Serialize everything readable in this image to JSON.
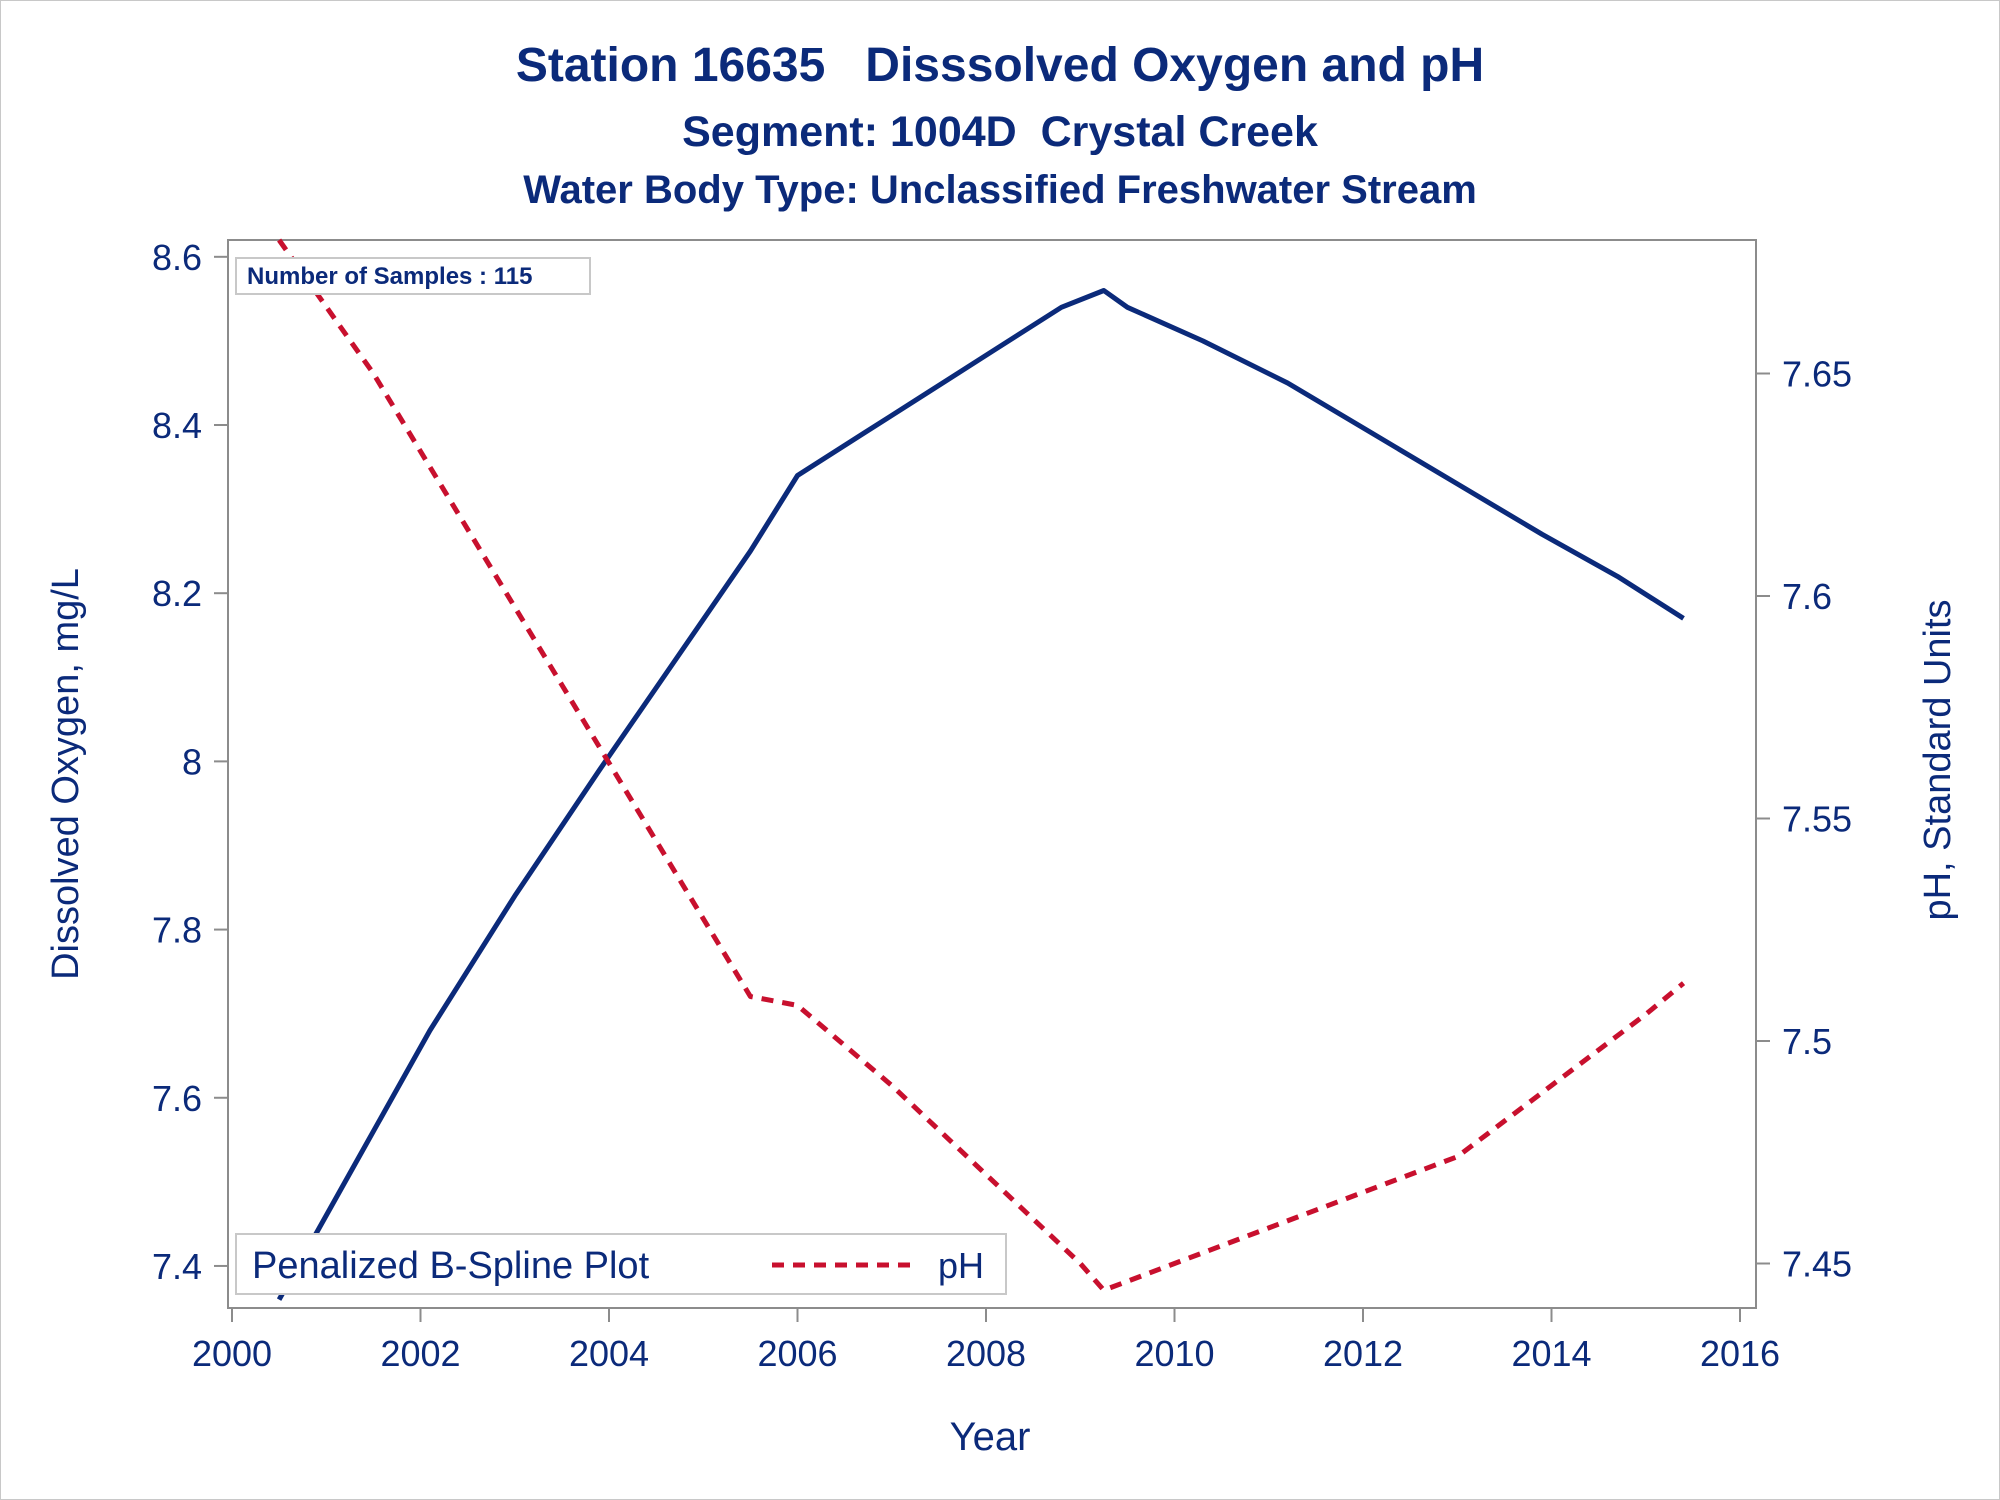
{
  "chart_data": {
    "type": "line",
    "title": "Station 16635   Disssolved Oxygen and pH",
    "subtitle": "Segment: 1004D  Crystal Creek",
    "subtitle2": "Water Body Type: Unclassified Freshwater Stream",
    "xlabel": "Year",
    "ylabel_left": "Dissolved Oxygen, mg/L",
    "ylabel_right": "pH, Standard Units",
    "xlim": [
      2000,
      2016
    ],
    "ylim_left": [
      7.35,
      8.62
    ],
    "ylim_right": [
      7.44,
      7.68
    ],
    "x_ticks": [
      2000,
      2002,
      2004,
      2006,
      2008,
      2010,
      2012,
      2014,
      2016
    ],
    "y_left_ticks": [
      7.4,
      7.6,
      7.8,
      8,
      8.2,
      8.4,
      8.6
    ],
    "y_right_ticks": [
      7.45,
      7.5,
      7.55,
      7.6,
      7.65
    ],
    "grid": false,
    "inset_label": "Number of Samples : 115",
    "legend": {
      "placement": "bottom-left",
      "title": "Penalized B-Spline Plot",
      "entries": [
        {
          "label": "pH",
          "series": "pH"
        }
      ]
    },
    "series": [
      {
        "name": "Dissolved Oxygen",
        "axis": "left",
        "color": "#0b2a7a",
        "style": "solid",
        "x": [
          2000.5,
          2001.3,
          2002.1,
          2003.0,
          2003.9,
          2004.7,
          2005.5,
          2006.0,
          2006.7,
          2007.4,
          2008.1,
          2008.8,
          2009.25,
          2009.5,
          2010.3,
          2011.2,
          2012.1,
          2013.0,
          2013.9,
          2014.7,
          2015.4
        ],
        "y": [
          7.36,
          7.52,
          7.68,
          7.84,
          7.99,
          8.12,
          8.25,
          8.34,
          8.39,
          8.44,
          8.49,
          8.54,
          8.56,
          8.54,
          8.5,
          8.45,
          8.39,
          8.33,
          8.27,
          8.22,
          8.17
        ]
      },
      {
        "name": "pH",
        "axis": "right",
        "color": "#c8102e",
        "style": "dashed",
        "x": [
          2000.5,
          2001.5,
          2002.5,
          2003.5,
          2004.5,
          2005.5,
          2006.0,
          2007.0,
          2008.0,
          2009.0,
          2009.25,
          2010.0,
          2011.0,
          2012.0,
          2013.0,
          2014.0,
          2015.0,
          2015.4
        ],
        "y": [
          7.68,
          7.65,
          7.615,
          7.58,
          7.545,
          7.51,
          7.508,
          7.49,
          7.47,
          7.45,
          7.444,
          7.45,
          7.458,
          7.466,
          7.474,
          7.49,
          7.506,
          7.513
        ]
      }
    ]
  }
}
